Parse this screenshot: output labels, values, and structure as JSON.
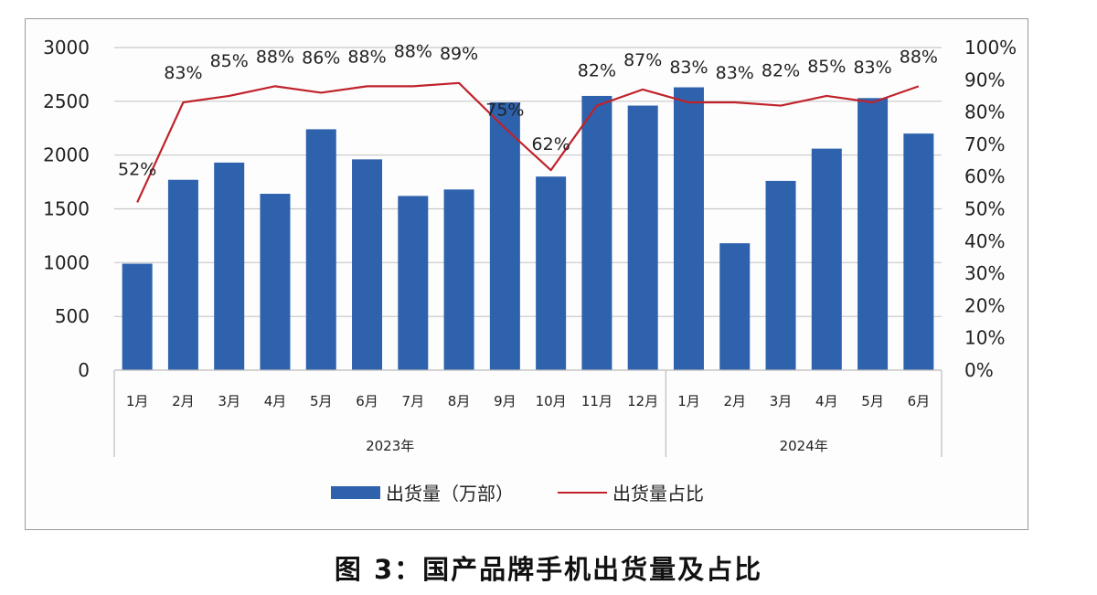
{
  "chart_data": {
    "type": "bar",
    "title": "图 3：国产品牌手机出货量及占比",
    "xlabel": "",
    "ylabel": "",
    "y2label": "",
    "groups": [
      {
        "label": "2023年",
        "categories": [
          "1月",
          "2月",
          "3月",
          "4月",
          "5月",
          "6月",
          "7月",
          "8月",
          "9月",
          "10月",
          "11月",
          "12月"
        ]
      },
      {
        "label": "2024年",
        "categories": [
          "1月",
          "2月",
          "3月",
          "4月",
          "5月",
          "6月"
        ]
      }
    ],
    "categories": [
      "2023-1月",
      "2023-2月",
      "2023-3月",
      "2023-4月",
      "2023-5月",
      "2023-6月",
      "2023-7月",
      "2023-8月",
      "2023-9月",
      "2023-10月",
      "2023-11月",
      "2023-12月",
      "2024-1月",
      "2024-2月",
      "2024-3月",
      "2024-4月",
      "2024-5月",
      "2024-6月"
    ],
    "series": [
      {
        "name": "出货量（万部）",
        "type": "bar",
        "axis": "left",
        "color": "#2e62ad",
        "values": [
          990,
          1770,
          1930,
          1640,
          2240,
          1960,
          1620,
          1680,
          2490,
          1800,
          2550,
          2460,
          2630,
          1180,
          1760,
          2060,
          2530,
          2200
        ]
      },
      {
        "name": "出货量占比",
        "type": "line",
        "axis": "right",
        "color": "#c0222a",
        "values": [
          52,
          83,
          85,
          88,
          86,
          88,
          88,
          89,
          75,
          62,
          82,
          87,
          83,
          83,
          82,
          85,
          83,
          88
        ],
        "labels": [
          "52%",
          "83%",
          "85%",
          "88%",
          "86%",
          "88%",
          "88%",
          "89%",
          "75%",
          "62%",
          "82%",
          "87%",
          "83%",
          "83%",
          "82%",
          "85%",
          "83%",
          "88%"
        ]
      }
    ],
    "ylim": [
      0,
      3000
    ],
    "yticks": [
      "0",
      "500",
      "1000",
      "1500",
      "2000",
      "2500",
      "3000"
    ],
    "y2lim": [
      0,
      100
    ],
    "y2ticks": [
      "0%",
      "10%",
      "20%",
      "30%",
      "40%",
      "50%",
      "60%",
      "70%",
      "80%",
      "90%",
      "100%"
    ],
    "grid": true,
    "legend_position": "bottom"
  },
  "legend": {
    "bar_label": "出货量（万部）",
    "line_label": "出货量占比"
  },
  "caption": "图 3：国产品牌手机出货量及占比"
}
